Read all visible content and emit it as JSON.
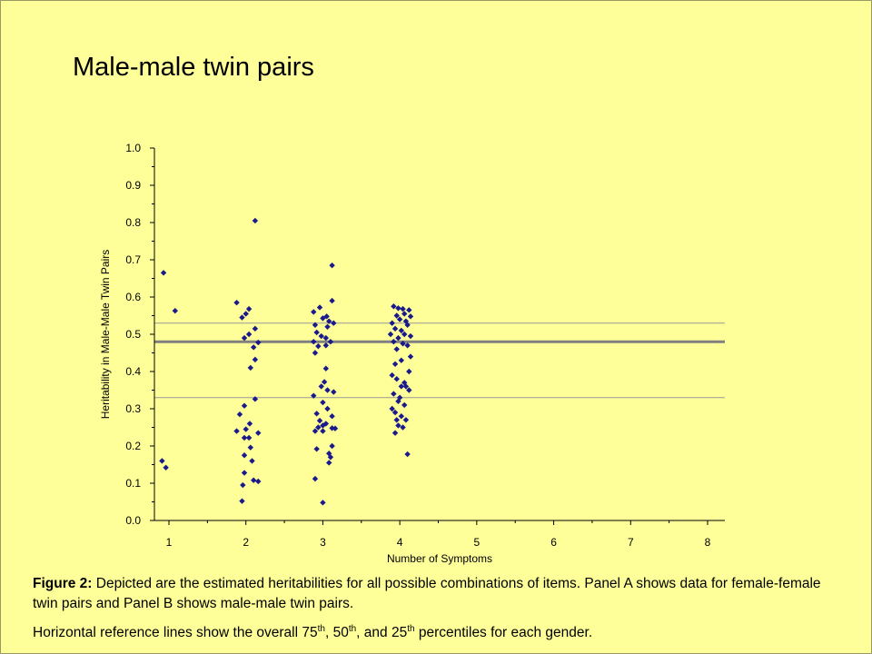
{
  "title": "Male-male twin pairs",
  "caption": {
    "label": "Figure 2:",
    "text": " Depicted are the estimated heritabilities for all possible combinations of items. Panel A shows data for female-female twin pairs and Panel B shows male-male twin pairs.",
    "note_prefix": "Horizontal reference lines show the overall 75",
    "sup1": "th",
    "sep1": ", 50",
    "sup2": "th",
    "sep2": ", and 25",
    "sup3": "th",
    "note_suffix": " percentiles for each gender."
  },
  "colors": {
    "background": "#FFFF99",
    "marker": "#1A1A8C",
    "median_line": "#808080",
    "quartile_line": "#999999"
  },
  "chart_data": {
    "type": "scatter",
    "xlabel": "Number of Symptoms",
    "ylabel": "Heritability in Male-Male Twin Pairs",
    "xlim": [
      0.8,
      8.2
    ],
    "ylim": [
      0,
      1.0
    ],
    "xticks": [
      "1",
      "2",
      "3",
      "4",
      "5",
      "6",
      "7",
      "8"
    ],
    "yticks": [
      "0.0",
      "0.1",
      "0.2",
      "0.3",
      "0.4",
      "0.5",
      "0.6",
      "0.7",
      "0.8",
      "0.9",
      "1.0"
    ],
    "grid": false,
    "reference_lines": [
      {
        "percentile": 75,
        "y": 0.53
      },
      {
        "percentile": 50,
        "y": 0.48
      },
      {
        "percentile": 25,
        "y": 0.33
      }
    ],
    "points": [
      [
        0.93,
        0.665
      ],
      [
        1.08,
        0.563
      ],
      [
        0.91,
        0.16
      ],
      [
        0.96,
        0.142
      ],
      [
        1.88,
        0.585
      ],
      [
        2.04,
        0.568
      ],
      [
        1.95,
        0.545
      ],
      [
        2.0,
        0.555
      ],
      [
        1.98,
        0.49
      ],
      [
        2.04,
        0.5
      ],
      [
        2.12,
        0.515
      ],
      [
        2.16,
        0.478
      ],
      [
        2.1,
        0.465
      ],
      [
        2.06,
        0.41
      ],
      [
        2.12,
        0.432
      ],
      [
        2.12,
        0.805
      ],
      [
        1.98,
        0.308
      ],
      [
        2.12,
        0.326
      ],
      [
        1.92,
        0.285
      ],
      [
        1.88,
        0.24
      ],
      [
        2.0,
        0.245
      ],
      [
        2.05,
        0.26
      ],
      [
        1.98,
        0.222
      ],
      [
        2.04,
        0.222
      ],
      [
        2.16,
        0.235
      ],
      [
        2.06,
        0.196
      ],
      [
        1.98,
        0.175
      ],
      [
        2.08,
        0.16
      ],
      [
        1.98,
        0.128
      ],
      [
        2.1,
        0.108
      ],
      [
        2.16,
        0.105
      ],
      [
        1.96,
        0.095
      ],
      [
        1.95,
        0.052
      ],
      [
        2.88,
        0.56
      ],
      [
        2.96,
        0.572
      ],
      [
        3.05,
        0.548
      ],
      [
        3.12,
        0.59
      ],
      [
        3.0,
        0.543
      ],
      [
        2.9,
        0.525
      ],
      [
        3.08,
        0.535
      ],
      [
        3.14,
        0.53
      ],
      [
        2.92,
        0.505
      ],
      [
        3.06,
        0.52
      ],
      [
        3.1,
        0.48
      ],
      [
        2.98,
        0.495
      ],
      [
        2.88,
        0.48
      ],
      [
        2.94,
        0.468
      ],
      [
        3.04,
        0.49
      ],
      [
        3.04,
        0.47
      ],
      [
        2.9,
        0.45
      ],
      [
        3.12,
        0.685
      ],
      [
        3.04,
        0.408
      ],
      [
        3.02,
        0.372
      ],
      [
        2.98,
        0.36
      ],
      [
        3.06,
        0.35
      ],
      [
        3.14,
        0.345
      ],
      [
        2.88,
        0.335
      ],
      [
        3.0,
        0.317
      ],
      [
        3.06,
        0.3
      ],
      [
        3.12,
        0.28
      ],
      [
        2.92,
        0.287
      ],
      [
        2.96,
        0.268
      ],
      [
        3.0,
        0.255
      ],
      [
        3.04,
        0.26
      ],
      [
        2.9,
        0.24
      ],
      [
        2.94,
        0.25
      ],
      [
        3.12,
        0.248
      ],
      [
        3.16,
        0.247
      ],
      [
        3.0,
        0.24
      ],
      [
        3.12,
        0.2
      ],
      [
        3.08,
        0.18
      ],
      [
        3.1,
        0.17
      ],
      [
        3.08,
        0.155
      ],
      [
        2.92,
        0.192
      ],
      [
        2.9,
        0.112
      ],
      [
        3.0,
        0.048
      ],
      [
        3.92,
        0.575
      ],
      [
        4.04,
        0.568
      ],
      [
        4.12,
        0.565
      ],
      [
        3.98,
        0.57
      ],
      [
        3.96,
        0.55
      ],
      [
        4.06,
        0.555
      ],
      [
        4.14,
        0.548
      ],
      [
        3.9,
        0.53
      ],
      [
        4.0,
        0.54
      ],
      [
        4.08,
        0.535
      ],
      [
        3.94,
        0.515
      ],
      [
        4.02,
        0.51
      ],
      [
        4.1,
        0.525
      ],
      [
        3.88,
        0.5
      ],
      [
        3.98,
        0.49
      ],
      [
        4.06,
        0.5
      ],
      [
        4.14,
        0.495
      ],
      [
        3.92,
        0.48
      ],
      [
        4.04,
        0.475
      ],
      [
        3.96,
        0.46
      ],
      [
        4.1,
        0.47
      ],
      [
        4.14,
        0.44
      ],
      [
        4.02,
        0.43
      ],
      [
        3.94,
        0.42
      ],
      [
        4.12,
        0.4
      ],
      [
        3.9,
        0.39
      ],
      [
        3.96,
        0.38
      ],
      [
        4.06,
        0.37
      ],
      [
        4.02,
        0.36
      ],
      [
        4.08,
        0.36
      ],
      [
        4.12,
        0.35
      ],
      [
        3.92,
        0.34
      ],
      [
        4.0,
        0.33
      ],
      [
        3.98,
        0.32
      ],
      [
        4.06,
        0.31
      ],
      [
        3.9,
        0.3
      ],
      [
        3.94,
        0.29
      ],
      [
        4.02,
        0.28
      ],
      [
        3.96,
        0.27
      ],
      [
        4.08,
        0.27
      ],
      [
        3.98,
        0.255
      ],
      [
        4.04,
        0.25
      ],
      [
        3.94,
        0.235
      ],
      [
        4.1,
        0.178
      ]
    ]
  }
}
